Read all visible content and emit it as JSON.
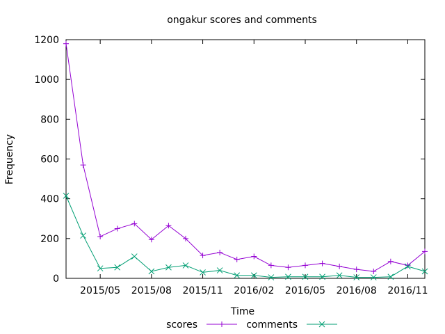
{
  "chart_data": {
    "type": "line",
    "title": "ongakur scores and comments",
    "xlabel": "Time",
    "ylabel": "Frequency",
    "ylim": [
      0,
      1200
    ],
    "yticks": [
      0,
      200,
      400,
      600,
      800,
      1000,
      1200
    ],
    "xlim": [
      "2015-03",
      "2016-12"
    ],
    "xticks": [
      {
        "label": "2015/05",
        "month": "2015-05"
      },
      {
        "label": "2015/08",
        "month": "2015-08"
      },
      {
        "label": "2015/11",
        "month": "2015-11"
      },
      {
        "label": "2016/02",
        "month": "2016-02"
      },
      {
        "label": "2016/05",
        "month": "2016-05"
      },
      {
        "label": "2016/08",
        "month": "2016-08"
      },
      {
        "label": "2016/11",
        "month": "2016-11"
      }
    ],
    "grid": false,
    "legend_position": "bottom",
    "x": [
      "2015-03",
      "2015-04",
      "2015-05",
      "2015-06",
      "2015-07",
      "2015-08",
      "2015-09",
      "2015-10",
      "2015-11",
      "2015-12",
      "2016-01",
      "2016-02",
      "2016-03",
      "2016-04",
      "2016-05",
      "2016-06",
      "2016-07",
      "2016-08",
      "2016-09",
      "2016-10",
      "2016-11",
      "2016-12"
    ],
    "series": [
      {
        "name": "scores",
        "color": "#9400d3",
        "marker": "plus",
        "values": [
          1180,
          570,
          210,
          250,
          275,
          195,
          265,
          200,
          115,
          130,
          95,
          110,
          65,
          55,
          65,
          75,
          60,
          45,
          35,
          85,
          65,
          135
        ]
      },
      {
        "name": "comments",
        "color": "#009e73",
        "marker": "cross",
        "values": [
          415,
          215,
          50,
          55,
          110,
          35,
          55,
          65,
          30,
          40,
          15,
          15,
          5,
          8,
          8,
          8,
          15,
          5,
          5,
          8,
          60,
          35
        ]
      }
    ]
  }
}
